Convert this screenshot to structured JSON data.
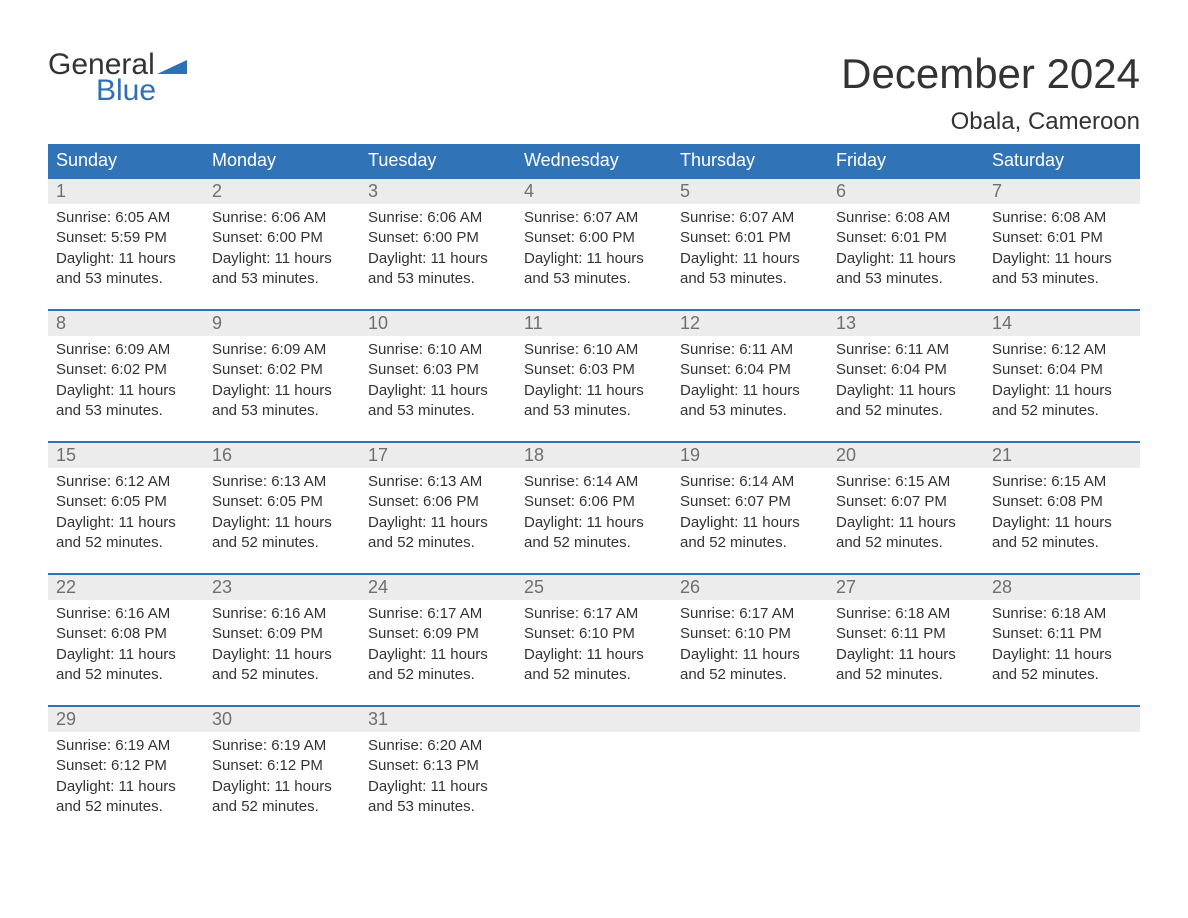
{
  "brand": {
    "word1": "General",
    "word2": "Blue",
    "logo_color": "#2f6fb3",
    "text_color": "#333333"
  },
  "header": {
    "month_title": "December 2024",
    "location": "Obala, Cameroon"
  },
  "colors": {
    "header_bg": "#3173b7",
    "header_text": "#ffffff",
    "daynum_bg": "#ececec",
    "daynum_text": "#6f6f6f",
    "body_text": "#333333",
    "row_border": "#3173b7",
    "page_bg": "#ffffff"
  },
  "typography": {
    "month_title_fontsize": 42,
    "location_fontsize": 24,
    "dow_fontsize": 18,
    "daynum_fontsize": 18,
    "body_fontsize": 15,
    "font_family": "Arial"
  },
  "days_of_week": [
    "Sunday",
    "Monday",
    "Tuesday",
    "Wednesday",
    "Thursday",
    "Friday",
    "Saturday"
  ],
  "weeks": [
    [
      {
        "n": "1",
        "sunrise": "Sunrise: 6:05 AM",
        "sunset": "Sunset: 5:59 PM",
        "daylight": "Daylight: 11 hours and 53 minutes."
      },
      {
        "n": "2",
        "sunrise": "Sunrise: 6:06 AM",
        "sunset": "Sunset: 6:00 PM",
        "daylight": "Daylight: 11 hours and 53 minutes."
      },
      {
        "n": "3",
        "sunrise": "Sunrise: 6:06 AM",
        "sunset": "Sunset: 6:00 PM",
        "daylight": "Daylight: 11 hours and 53 minutes."
      },
      {
        "n": "4",
        "sunrise": "Sunrise: 6:07 AM",
        "sunset": "Sunset: 6:00 PM",
        "daylight": "Daylight: 11 hours and 53 minutes."
      },
      {
        "n": "5",
        "sunrise": "Sunrise: 6:07 AM",
        "sunset": "Sunset: 6:01 PM",
        "daylight": "Daylight: 11 hours and 53 minutes."
      },
      {
        "n": "6",
        "sunrise": "Sunrise: 6:08 AM",
        "sunset": "Sunset: 6:01 PM",
        "daylight": "Daylight: 11 hours and 53 minutes."
      },
      {
        "n": "7",
        "sunrise": "Sunrise: 6:08 AM",
        "sunset": "Sunset: 6:01 PM",
        "daylight": "Daylight: 11 hours and 53 minutes."
      }
    ],
    [
      {
        "n": "8",
        "sunrise": "Sunrise: 6:09 AM",
        "sunset": "Sunset: 6:02 PM",
        "daylight": "Daylight: 11 hours and 53 minutes."
      },
      {
        "n": "9",
        "sunrise": "Sunrise: 6:09 AM",
        "sunset": "Sunset: 6:02 PM",
        "daylight": "Daylight: 11 hours and 53 minutes."
      },
      {
        "n": "10",
        "sunrise": "Sunrise: 6:10 AM",
        "sunset": "Sunset: 6:03 PM",
        "daylight": "Daylight: 11 hours and 53 minutes."
      },
      {
        "n": "11",
        "sunrise": "Sunrise: 6:10 AM",
        "sunset": "Sunset: 6:03 PM",
        "daylight": "Daylight: 11 hours and 53 minutes."
      },
      {
        "n": "12",
        "sunrise": "Sunrise: 6:11 AM",
        "sunset": "Sunset: 6:04 PM",
        "daylight": "Daylight: 11 hours and 53 minutes."
      },
      {
        "n": "13",
        "sunrise": "Sunrise: 6:11 AM",
        "sunset": "Sunset: 6:04 PM",
        "daylight": "Daylight: 11 hours and 52 minutes."
      },
      {
        "n": "14",
        "sunrise": "Sunrise: 6:12 AM",
        "sunset": "Sunset: 6:04 PM",
        "daylight": "Daylight: 11 hours and 52 minutes."
      }
    ],
    [
      {
        "n": "15",
        "sunrise": "Sunrise: 6:12 AM",
        "sunset": "Sunset: 6:05 PM",
        "daylight": "Daylight: 11 hours and 52 minutes."
      },
      {
        "n": "16",
        "sunrise": "Sunrise: 6:13 AM",
        "sunset": "Sunset: 6:05 PM",
        "daylight": "Daylight: 11 hours and 52 minutes."
      },
      {
        "n": "17",
        "sunrise": "Sunrise: 6:13 AM",
        "sunset": "Sunset: 6:06 PM",
        "daylight": "Daylight: 11 hours and 52 minutes."
      },
      {
        "n": "18",
        "sunrise": "Sunrise: 6:14 AM",
        "sunset": "Sunset: 6:06 PM",
        "daylight": "Daylight: 11 hours and 52 minutes."
      },
      {
        "n": "19",
        "sunrise": "Sunrise: 6:14 AM",
        "sunset": "Sunset: 6:07 PM",
        "daylight": "Daylight: 11 hours and 52 minutes."
      },
      {
        "n": "20",
        "sunrise": "Sunrise: 6:15 AM",
        "sunset": "Sunset: 6:07 PM",
        "daylight": "Daylight: 11 hours and 52 minutes."
      },
      {
        "n": "21",
        "sunrise": "Sunrise: 6:15 AM",
        "sunset": "Sunset: 6:08 PM",
        "daylight": "Daylight: 11 hours and 52 minutes."
      }
    ],
    [
      {
        "n": "22",
        "sunrise": "Sunrise: 6:16 AM",
        "sunset": "Sunset: 6:08 PM",
        "daylight": "Daylight: 11 hours and 52 minutes."
      },
      {
        "n": "23",
        "sunrise": "Sunrise: 6:16 AM",
        "sunset": "Sunset: 6:09 PM",
        "daylight": "Daylight: 11 hours and 52 minutes."
      },
      {
        "n": "24",
        "sunrise": "Sunrise: 6:17 AM",
        "sunset": "Sunset: 6:09 PM",
        "daylight": "Daylight: 11 hours and 52 minutes."
      },
      {
        "n": "25",
        "sunrise": "Sunrise: 6:17 AM",
        "sunset": "Sunset: 6:10 PM",
        "daylight": "Daylight: 11 hours and 52 minutes."
      },
      {
        "n": "26",
        "sunrise": "Sunrise: 6:17 AM",
        "sunset": "Sunset: 6:10 PM",
        "daylight": "Daylight: 11 hours and 52 minutes."
      },
      {
        "n": "27",
        "sunrise": "Sunrise: 6:18 AM",
        "sunset": "Sunset: 6:11 PM",
        "daylight": "Daylight: 11 hours and 52 minutes."
      },
      {
        "n": "28",
        "sunrise": "Sunrise: 6:18 AM",
        "sunset": "Sunset: 6:11 PM",
        "daylight": "Daylight: 11 hours and 52 minutes."
      }
    ],
    [
      {
        "n": "29",
        "sunrise": "Sunrise: 6:19 AM",
        "sunset": "Sunset: 6:12 PM",
        "daylight": "Daylight: 11 hours and 52 minutes."
      },
      {
        "n": "30",
        "sunrise": "Sunrise: 6:19 AM",
        "sunset": "Sunset: 6:12 PM",
        "daylight": "Daylight: 11 hours and 52 minutes."
      },
      {
        "n": "31",
        "sunrise": "Sunrise: 6:20 AM",
        "sunset": "Sunset: 6:13 PM",
        "daylight": "Daylight: 11 hours and 53 minutes."
      },
      null,
      null,
      null,
      null
    ]
  ]
}
